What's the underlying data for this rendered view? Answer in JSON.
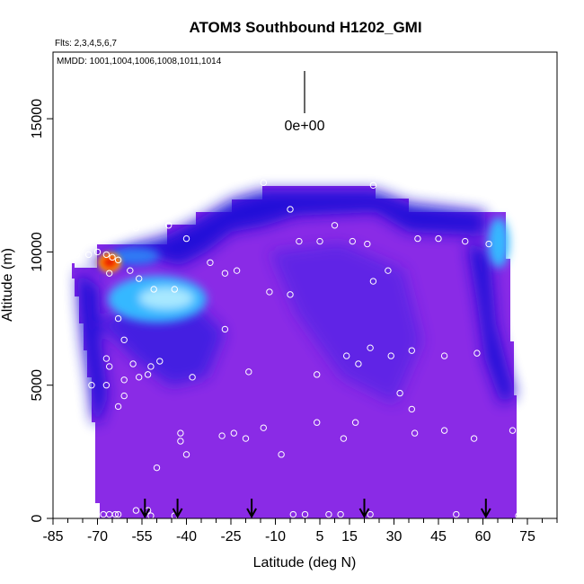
{
  "chart_data": {
    "type": "heatmap",
    "title": "ATOM3 Southbound H1202_GMI",
    "flights_note": "Flts: 2,3,4,5,6,7",
    "dates_note": "MMDD: 1001,1004,1006,1008,1011,1014",
    "xlabel": "Latitude (deg N)",
    "ylabel": "Altitude (m)",
    "xlim": [
      -85,
      85
    ],
    "ylim": [
      0,
      17500
    ],
    "x_tick_labels": [
      "-85",
      "-70",
      "-55",
      "-40",
      "-25",
      "-10",
      "5",
      "15",
      "30",
      "45",
      "60",
      "75"
    ],
    "x_tick_values": [
      -85,
      -70,
      -55,
      -40,
      -25,
      -10,
      5,
      15,
      30,
      45,
      60,
      75
    ],
    "y_tick_labels": [
      "0",
      "5000",
      "10000",
      "15000"
    ],
    "y_tick_values": [
      0,
      5000,
      10000,
      15000
    ],
    "scale_label": "0e+00",
    "arrow_latitudes": [
      -54,
      -43,
      -18,
      20,
      61
    ],
    "colors": {
      "background_fill": "#8a2be6",
      "dark_blue": "#1a10d8",
      "mid_blue": "#2f3cf0",
      "light_blue": "#35b8ff",
      "pale_cyan": "#a8e8ff",
      "red": "#d40000",
      "orange": "#ffae00",
      "point_outline": "#ffffff"
    },
    "observation_points": [
      [
        -68,
        150
      ],
      [
        -66,
        150
      ],
      [
        -64,
        150
      ],
      [
        -63,
        150
      ],
      [
        -57,
        300
      ],
      [
        -53,
        300
      ],
      [
        -52,
        100
      ],
      [
        -44,
        100
      ],
      [
        -42,
        3200
      ],
      [
        -42,
        2900
      ],
      [
        -50,
        1900
      ],
      [
        -40,
        2400
      ],
      [
        -28,
        3100
      ],
      [
        -24,
        3200
      ],
      [
        -20,
        3000
      ],
      [
        -14,
        3400
      ],
      [
        -8,
        2400
      ],
      [
        -4,
        150
      ],
      [
        0,
        150
      ],
      [
        4,
        3600
      ],
      [
        8,
        150
      ],
      [
        12,
        150
      ],
      [
        13,
        3000
      ],
      [
        17,
        3600
      ],
      [
        22,
        150
      ],
      [
        32,
        4700
      ],
      [
        36,
        4100
      ],
      [
        37,
        3200
      ],
      [
        47,
        3300
      ],
      [
        51,
        150
      ],
      [
        57,
        3000
      ],
      [
        70,
        3300
      ],
      [
        72,
        100
      ],
      [
        -72,
        5000
      ],
      [
        -67,
        5000
      ],
      [
        -67,
        6000
      ],
      [
        -66,
        5700
      ],
      [
        -63,
        4200
      ],
      [
        -61,
        5200
      ],
      [
        -61,
        4600
      ],
      [
        -58,
        5800
      ],
      [
        -56,
        5300
      ],
      [
        -53,
        5400
      ],
      [
        -52,
        5700
      ],
      [
        -49,
        5900
      ],
      [
        -38,
        5300
      ],
      [
        -19,
        5500
      ],
      [
        4,
        5400
      ],
      [
        14,
        6100
      ],
      [
        18,
        5800
      ],
      [
        22,
        6400
      ],
      [
        29,
        6100
      ],
      [
        36,
        6300
      ],
      [
        47,
        6100
      ],
      [
        58,
        6200
      ],
      [
        -61,
        6700
      ],
      [
        -27,
        7100
      ],
      [
        -63,
        7500
      ],
      [
        -66,
        9200
      ],
      [
        -59,
        9300
      ],
      [
        -56,
        9000
      ],
      [
        -63,
        9700
      ],
      [
        -51,
        8600
      ],
      [
        -44,
        8600
      ],
      [
        -32,
        9600
      ],
      [
        -27,
        9200
      ],
      [
        -23,
        9300
      ],
      [
        -12,
        8500
      ],
      [
        -5,
        8400
      ],
      [
        23,
        8900
      ],
      [
        28,
        9300
      ],
      [
        -81,
        9900
      ],
      [
        -77,
        9900
      ],
      [
        -73,
        9900
      ],
      [
        -70,
        10000
      ],
      [
        -67,
        9900
      ],
      [
        -65,
        9800
      ],
      [
        -57,
        10900
      ],
      [
        -46,
        11000
      ],
      [
        -40,
        10500
      ],
      [
        -5,
        11600
      ],
      [
        -2,
        10400
      ],
      [
        5,
        10400
      ],
      [
        10,
        11000
      ],
      [
        16,
        10400
      ],
      [
        21,
        10300
      ],
      [
        38,
        10500
      ],
      [
        45,
        10500
      ],
      [
        54,
        10400
      ],
      [
        62,
        10300
      ],
      [
        -14,
        12600
      ],
      [
        23,
        12500
      ],
      [
        69,
        11800
      ]
    ]
  }
}
